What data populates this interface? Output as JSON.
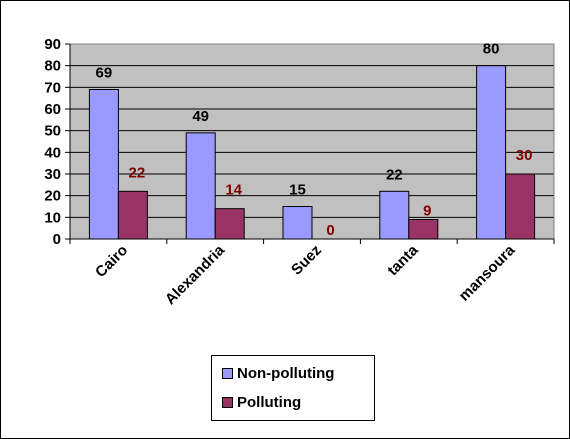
{
  "chart_data": {
    "type": "bar",
    "categories": [
      "Cairo",
      "Alexandria",
      "Suez",
      "tanta",
      "mansoura"
    ],
    "series": [
      {
        "name": "Non-polluting",
        "values": [
          69,
          49,
          15,
          22,
          80
        ],
        "color": "#9999FF",
        "label_color": "#000000"
      },
      {
        "name": "Polluting",
        "values": [
          22,
          14,
          0,
          9,
          30
        ],
        "color": "#993366",
        "label_color": "#800000"
      }
    ],
    "yticks": [
      0,
      10,
      20,
      30,
      40,
      50,
      60,
      70,
      80,
      90
    ],
    "ylim": [
      0,
      90
    ],
    "grid": true,
    "plot_background": "#C0C0C0",
    "legend_position": "bottom"
  }
}
